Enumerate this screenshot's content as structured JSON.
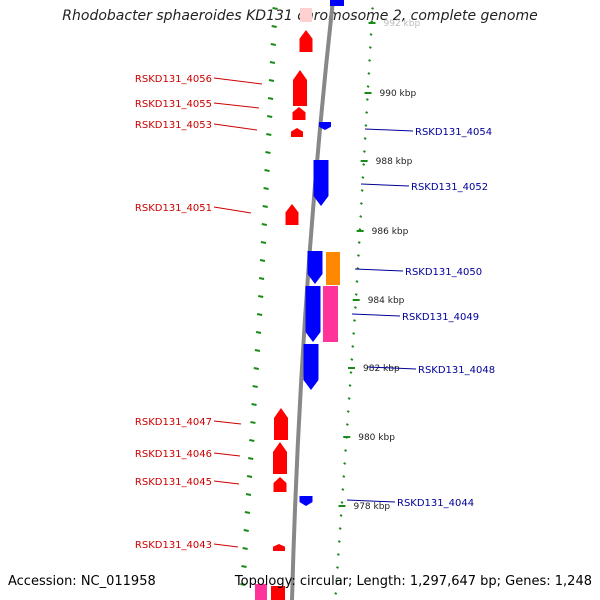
{
  "title": "Rhodobacter sphaeroides KD131 chromosome 2, complete genome",
  "footer": {
    "accession": "Accession: NC_011958",
    "topology": "Topology: circular; Length: 1,297,647 bp; Genes: 1,248"
  },
  "colors": {
    "forward_gene": "#ff0000",
    "reverse_gene": "#0000ff",
    "tick": "#1a8a1a",
    "backbone": "#888888",
    "label_forward": "#cc0000",
    "label_reverse": "#000099",
    "orange": "#ff8800",
    "pink": "#ff3399"
  },
  "kbp_ticks": [
    {
      "label": "992 kbp",
      "faded": true
    },
    {
      "label": "990 kbp"
    },
    {
      "label": "988 kbp"
    },
    {
      "label": "986 kbp"
    },
    {
      "label": "984 kbp"
    },
    {
      "label": "982 kbp"
    },
    {
      "label": "980 kbp"
    },
    {
      "label": "978 kbp"
    }
  ],
  "forward_labels": [
    "RSKD131_4056",
    "RSKD131_4055",
    "RSKD131_4053",
    "RSKD131_4051",
    "RSKD131_4047",
    "RSKD131_4046",
    "RSKD131_4045",
    "RSKD131_4043"
  ],
  "reverse_labels": [
    "RSKD131_4054",
    "RSKD131_4052",
    "RSKD131_4050",
    "RSKD131_4049",
    "RSKD131_4048",
    "RSKD131_4044"
  ]
}
